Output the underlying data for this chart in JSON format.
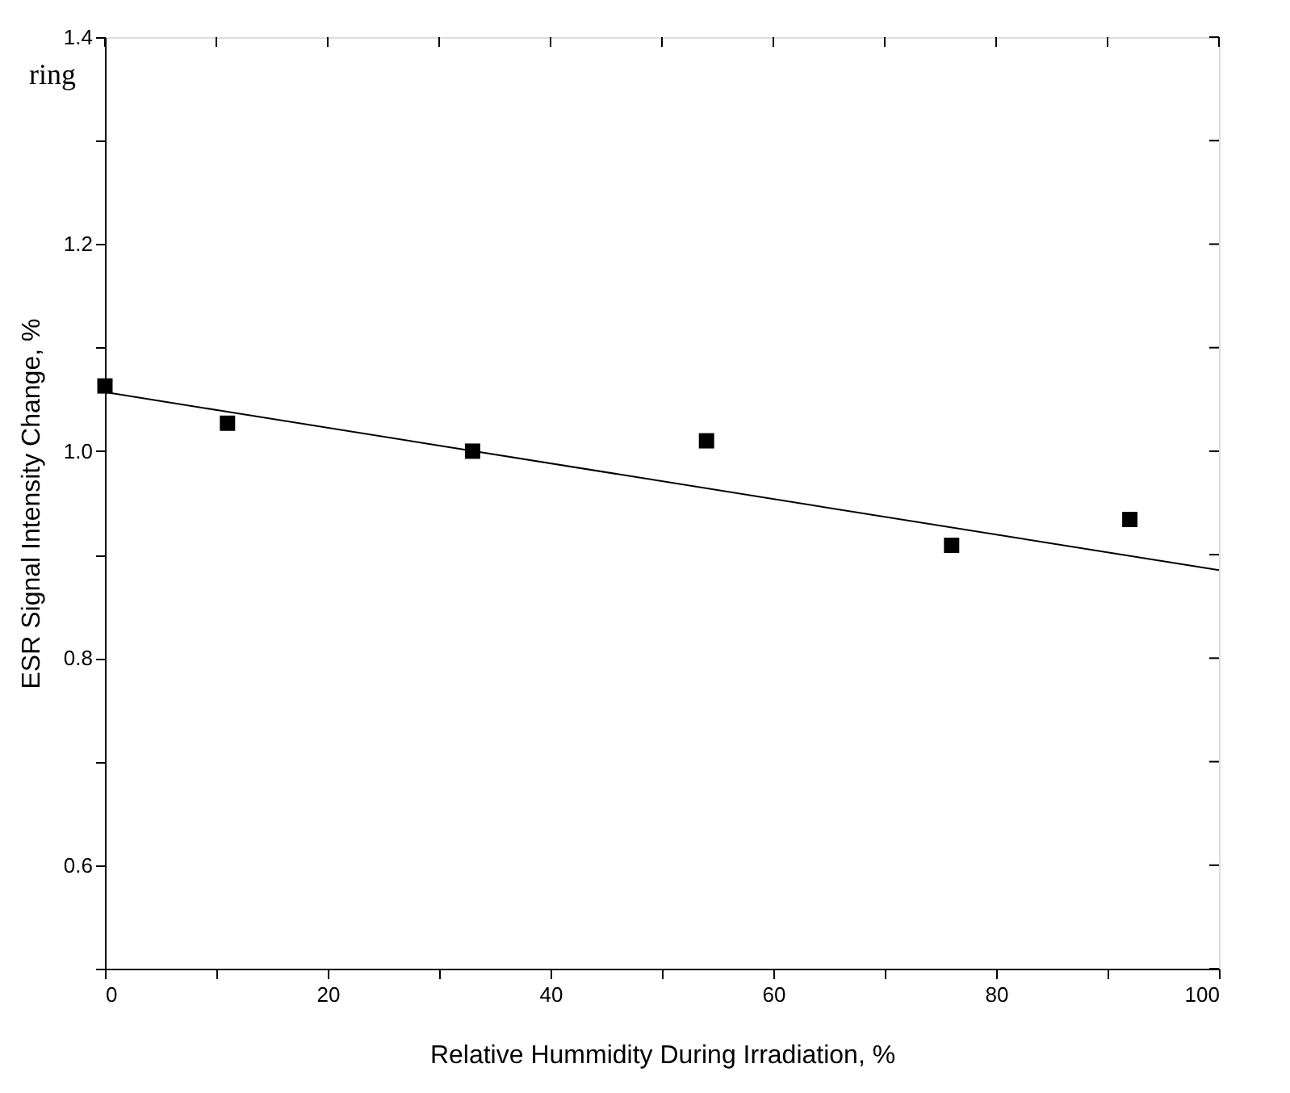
{
  "chart_data": {
    "type": "scatter",
    "xlabel": "Relative Hummidity During Irradiation, %",
    "ylabel": "ESR Signal Intensity Change, %",
    "annotations": [
      "ring"
    ],
    "series": [
      {
        "color": "#000000",
        "marker": "square",
        "x": [
          0,
          11,
          33,
          54,
          76,
          92
        ],
        "values": [
          1.063,
          1.027,
          1.0,
          1.01,
          0.909,
          0.934
        ]
      },
      {
        "type": "line",
        "color": "#000000",
        "marker": "none",
        "line_style": "solid",
        "x": [
          0,
          100
        ],
        "values": [
          1.057,
          0.885
        ]
      }
    ],
    "xlim": [
      0,
      100
    ],
    "xticks": [
      0,
      {
        "value": 10,
        "label": null
      },
      20,
      {
        "value": 30,
        "label": null
      },
      40,
      {
        "value": 50,
        "label": null
      },
      60,
      {
        "value": 70,
        "label": null
      },
      80,
      {
        "value": 90,
        "label": null
      },
      100
    ],
    "ylim": [
      0.5,
      1.4
    ],
    "yticks": [
      {
        "value": 0.5,
        "label": null
      },
      0.6,
      {
        "value": 0.7,
        "label": null
      },
      0.8,
      {
        "value": 0.9,
        "label": null
      },
      {
        "value": 1.0,
        "label": "1.0"
      },
      {
        "value": 1.1,
        "label": null
      },
      1.2,
      {
        "value": 1.3,
        "label": null
      },
      1.4
    ],
    "grid": false
  }
}
